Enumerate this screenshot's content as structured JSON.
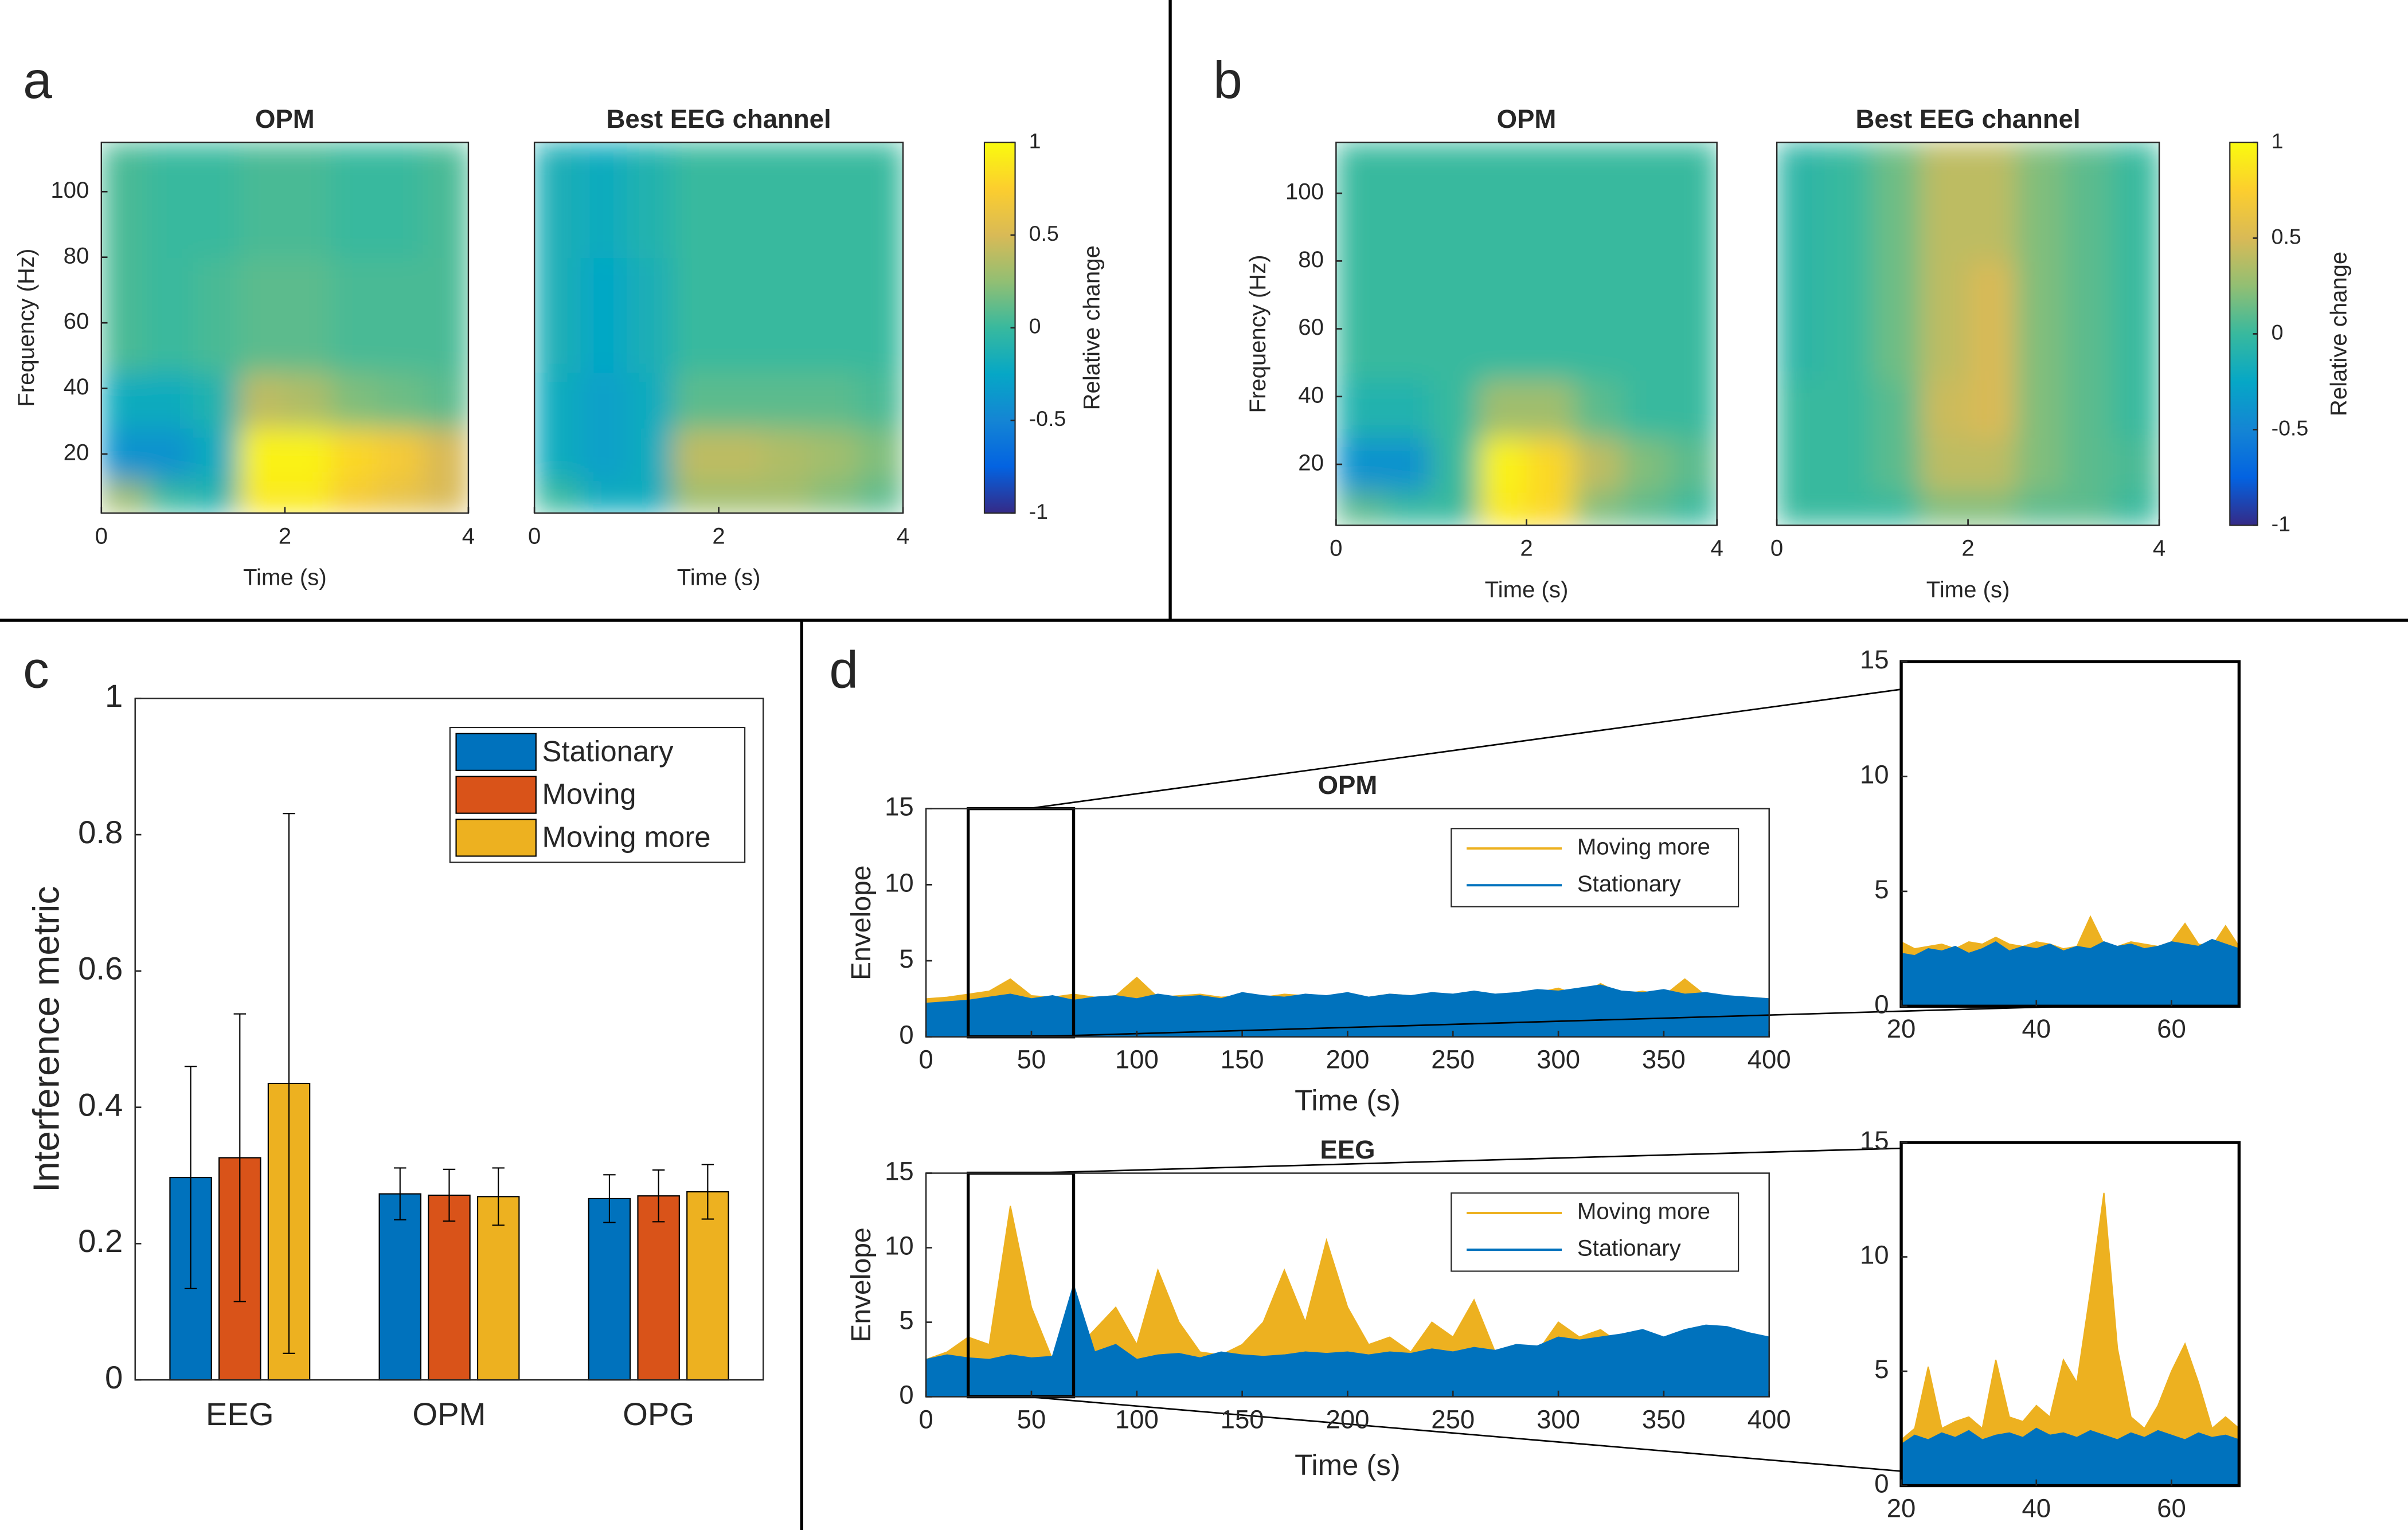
{
  "chart_data": [
    {
      "type": "heatmap",
      "panel_label": "a",
      "title": "OPM",
      "xlabel": "Time (s)",
      "ylabel": "Frequency (Hz)",
      "xlim": [
        0,
        4
      ],
      "ylim": [
        2,
        115
      ],
      "xticks": [
        0,
        2,
        4
      ],
      "yticks": [
        20,
        40,
        60,
        80,
        100
      ],
      "x_bins": [
        0,
        0.5,
        1,
        1.5,
        2,
        2.5,
        3,
        3.5,
        4
      ],
      "y_bins": [
        2,
        12,
        28,
        45,
        80,
        115
      ],
      "z": [
        [
          0.3,
          0.0,
          -0.1,
          0.9,
          0.9,
          0.7,
          0.6,
          0.5
        ],
        [
          -0.4,
          -0.4,
          -0.2,
          0.95,
          0.95,
          0.8,
          0.7,
          0.5
        ],
        [
          -0.2,
          -0.2,
          -0.1,
          0.4,
          0.35,
          0.2,
          0.15,
          0.1
        ],
        [
          0.05,
          0,
          0.05,
          0.1,
          0.1,
          0.05,
          0.05,
          0.05
        ],
        [
          0.05,
          0,
          0,
          0.05,
          0.05,
          0,
          0,
          0.05
        ]
      ],
      "clim": [
        -1,
        1
      ],
      "colormap": "parula"
    },
    {
      "type": "heatmap",
      "title": "Best EEG channel",
      "xlabel": "Time (s)",
      "xlim": [
        0,
        4
      ],
      "ylim": [
        2,
        115
      ],
      "xticks": [
        0,
        2,
        4
      ],
      "x_bins": [
        0,
        0.5,
        1,
        1.5,
        2,
        2.5,
        3,
        3.5,
        4
      ],
      "y_bins": [
        2,
        12,
        28,
        45,
        80,
        115
      ],
      "z": [
        [
          0,
          -0.2,
          -0.2,
          0.3,
          0.3,
          0.3,
          0.2,
          0.1
        ],
        [
          -0.2,
          -0.3,
          -0.2,
          0.4,
          0.4,
          0.35,
          0.3,
          0.2
        ],
        [
          -0.2,
          -0.3,
          -0.2,
          0.1,
          0.1,
          0.1,
          0.1,
          0.05
        ],
        [
          -0.15,
          -0.25,
          -0.15,
          0,
          0,
          0,
          0,
          0
        ],
        [
          -0.15,
          -0.2,
          -0.1,
          0,
          0,
          0,
          0,
          0
        ]
      ],
      "clim": [
        -1,
        1
      ],
      "colormap": "parula",
      "colorbar": {
        "label": "Relative change",
        "ticks": [
          -1,
          -0.5,
          0,
          0.5,
          1
        ]
      }
    },
    {
      "type": "heatmap",
      "panel_label": "b",
      "title": "OPM",
      "xlabel": "Time (s)",
      "ylabel": "Frequency (Hz)",
      "xlim": [
        0,
        4
      ],
      "ylim": [
        2,
        115
      ],
      "xticks": [
        0,
        2,
        4
      ],
      "yticks": [
        20,
        40,
        60,
        80,
        100
      ],
      "x_bins": [
        0,
        0.5,
        1,
        1.5,
        2,
        2.5,
        3,
        3.5,
        4
      ],
      "y_bins": [
        2,
        12,
        28,
        45,
        80,
        115
      ],
      "z": [
        [
          0.1,
          0,
          0,
          0.9,
          0.8,
          0.2,
          0.1,
          0
        ],
        [
          -0.4,
          -0.4,
          0,
          0.95,
          0.8,
          0.4,
          0.2,
          0.1
        ],
        [
          -0.1,
          -0.1,
          0,
          0.3,
          0.3,
          0.1,
          0,
          0
        ],
        [
          0,
          0,
          0,
          0,
          0,
          0,
          0,
          0
        ],
        [
          0,
          0,
          0,
          0,
          0,
          0,
          0,
          0
        ]
      ],
      "clim": [
        -1,
        1
      ],
      "colormap": "parula"
    },
    {
      "type": "heatmap",
      "title": "Best EEG channel",
      "xlabel": "Time (s)",
      "xlim": [
        0,
        4
      ],
      "ylim": [
        2,
        115
      ],
      "xticks": [
        0,
        2,
        4
      ],
      "x_bins": [
        0,
        0.5,
        1,
        1.5,
        2,
        2.5,
        3,
        3.5,
        4
      ],
      "y_bins": [
        2,
        12,
        28,
        45,
        80,
        115
      ],
      "z": [
        [
          0,
          0,
          0,
          0.2,
          0.2,
          0.1,
          0.1,
          0
        ],
        [
          0,
          0,
          0.1,
          0.4,
          0.4,
          0.2,
          0.1,
          0.05
        ],
        [
          0,
          0,
          0.1,
          0.45,
          0.5,
          0.2,
          0.1,
          0
        ],
        [
          -0.05,
          0,
          0.15,
          0.4,
          0.5,
          0.2,
          0.1,
          0
        ],
        [
          -0.05,
          0,
          0.15,
          0.4,
          0.4,
          0.2,
          0.1,
          0
        ]
      ],
      "clim": [
        -1,
        1
      ],
      "colormap": "parula",
      "colorbar": {
        "label": "Relative change",
        "ticks": [
          -1,
          -0.5,
          0,
          0.5,
          1
        ]
      }
    },
    {
      "type": "bar",
      "panel_label": "c",
      "ylabel": "Interference metric",
      "categories": [
        "EEG",
        "OPM",
        "OPG"
      ],
      "series": [
        {
          "name": "Stationary",
          "color": "#0072BD",
          "values": [
            0.297,
            0.273,
            0.266
          ],
          "errors": [
            0.163,
            0.038,
            0.035
          ]
        },
        {
          "name": "Moving",
          "color": "#D95319",
          "values": [
            0.326,
            0.271,
            0.27
          ],
          "errors": [
            0.211,
            0.038,
            0.038
          ]
        },
        {
          "name": "Moving more",
          "color": "#EDB120",
          "values": [
            0.435,
            0.269,
            0.276
          ],
          "errors": [
            0.396,
            0.042,
            0.04
          ]
        }
      ],
      "ylim": [
        0,
        1
      ],
      "yticks": [
        0,
        0.2,
        0.4,
        0.6,
        0.8,
        1
      ],
      "legend": "upper right"
    },
    {
      "type": "area",
      "panel_label": "d",
      "title": "OPM",
      "xlabel": "Time (s)",
      "ylabel": "Envelope",
      "x": [
        0,
        10,
        20,
        30,
        40,
        50,
        60,
        70,
        80,
        90,
        100,
        110,
        120,
        130,
        140,
        150,
        160,
        170,
        180,
        190,
        200,
        210,
        220,
        230,
        240,
        250,
        260,
        270,
        280,
        290,
        300,
        310,
        320,
        330,
        340,
        350,
        360,
        370,
        380,
        390,
        400
      ],
      "series": [
        {
          "name": "Moving more",
          "color": "#EDB120",
          "values": [
            2.5,
            2.6,
            2.8,
            3.0,
            3.8,
            2.7,
            2.6,
            2.8,
            2.6,
            2.7,
            3.9,
            2.6,
            2.7,
            2.8,
            2.6,
            2.7,
            2.6,
            2.8,
            2.7,
            2.6,
            2.7,
            2.6,
            2.8,
            2.7,
            2.6,
            2.7,
            2.8,
            2.6,
            2.7,
            2.9,
            3.2,
            2.7,
            3.5,
            2.8,
            3.0,
            2.7,
            3.8,
            2.7,
            2.6,
            2.6,
            2.5
          ]
        },
        {
          "name": "Stationary",
          "color": "#0072BD",
          "values": [
            2.2,
            2.3,
            2.4,
            2.6,
            2.8,
            2.5,
            2.7,
            2.4,
            2.6,
            2.7,
            2.5,
            2.8,
            2.6,
            2.7,
            2.5,
            2.9,
            2.7,
            2.6,
            2.8,
            2.7,
            2.9,
            2.6,
            2.8,
            2.7,
            2.9,
            2.8,
            3.0,
            2.8,
            2.9,
            3.1,
            3.0,
            3.2,
            3.4,
            3.0,
            2.9,
            3.1,
            2.8,
            2.9,
            2.7,
            2.6,
            2.5
          ]
        }
      ],
      "xlim": [
        0,
        400
      ],
      "ylim": [
        0,
        15
      ],
      "xticks": [
        0,
        50,
        100,
        150,
        200,
        250,
        300,
        350,
        400
      ],
      "yticks": [
        0,
        5,
        10,
        15
      ],
      "legend": "upper right"
    },
    {
      "type": "area",
      "x": [
        20,
        22,
        24,
        26,
        28,
        30,
        32,
        34,
        36,
        38,
        40,
        42,
        44,
        46,
        48,
        50,
        52,
        54,
        56,
        58,
        60,
        62,
        64,
        66,
        68,
        70
      ],
      "series": [
        {
          "color": "#EDB120",
          "values": [
            2.8,
            2.5,
            2.6,
            2.7,
            2.5,
            2.8,
            2.7,
            3.0,
            2.7,
            2.6,
            2.8,
            2.7,
            2.5,
            2.6,
            3.9,
            2.7,
            2.6,
            2.8,
            2.7,
            2.6,
            2.8,
            3.6,
            2.7,
            2.6,
            3.5,
            2.6
          ]
        },
        {
          "color": "#0072BD",
          "values": [
            2.3,
            2.2,
            2.5,
            2.4,
            2.6,
            2.3,
            2.5,
            2.8,
            2.4,
            2.6,
            2.5,
            2.7,
            2.4,
            2.6,
            2.5,
            2.8,
            2.6,
            2.7,
            2.5,
            2.6,
            2.8,
            2.7,
            2.6,
            2.9,
            2.7,
            2.5
          ]
        }
      ],
      "xlim": [
        20,
        70
      ],
      "ylim": [
        0,
        15
      ],
      "xticks": [
        20,
        40,
        60
      ],
      "yticks": [
        0,
        5,
        10,
        15
      ]
    },
    {
      "type": "area",
      "title": "EEG",
      "xlabel": "Time (s)",
      "ylabel": "Envelope",
      "x": [
        0,
        10,
        20,
        30,
        40,
        50,
        60,
        70,
        80,
        90,
        100,
        110,
        120,
        130,
        140,
        150,
        160,
        170,
        180,
        190,
        200,
        210,
        220,
        230,
        240,
        250,
        260,
        270,
        280,
        290,
        300,
        310,
        320,
        330,
        340,
        350,
        360,
        370,
        380,
        390,
        400
      ],
      "series": [
        {
          "name": "Moving more",
          "color": "#EDB120",
          "values": [
            2.5,
            3.0,
            4.0,
            3.5,
            12.8,
            6.0,
            2.5,
            3.0,
            4.5,
            6.0,
            3.5,
            8.5,
            5.0,
            3.0,
            2.8,
            3.5,
            5.0,
            8.5,
            5.0,
            10.5,
            6.0,
            3.5,
            4.0,
            3.0,
            5.0,
            4.0,
            6.5,
            3.0,
            3.5,
            3.0,
            5.0,
            4.0,
            4.5,
            3.5,
            4.5,
            3.0,
            3.5,
            3.0,
            3.2,
            3.0,
            2.8
          ]
        },
        {
          "name": "Stationary",
          "color": "#0072BD",
          "values": [
            2.5,
            2.8,
            2.6,
            2.5,
            2.8,
            2.6,
            2.7,
            7.5,
            3.0,
            3.5,
            2.5,
            2.8,
            2.9,
            2.6,
            3.0,
            2.8,
            2.7,
            2.8,
            3.0,
            2.9,
            3.0,
            2.8,
            3.0,
            2.9,
            3.2,
            3.0,
            3.3,
            3.1,
            3.5,
            3.4,
            4.0,
            3.8,
            4.0,
            4.2,
            4.5,
            4.0,
            4.5,
            4.8,
            4.7,
            4.3,
            4.0
          ]
        }
      ],
      "xlim": [
        0,
        400
      ],
      "ylim": [
        0,
        15
      ],
      "xticks": [
        0,
        50,
        100,
        150,
        200,
        250,
        300,
        350,
        400
      ],
      "yticks": [
        0,
        5,
        10,
        15
      ],
      "legend": "upper right"
    },
    {
      "type": "area",
      "x": [
        20,
        22,
        24,
        26,
        28,
        30,
        32,
        34,
        36,
        38,
        40,
        42,
        44,
        46,
        48,
        50,
        52,
        54,
        56,
        58,
        60,
        62,
        64,
        66,
        68,
        70
      ],
      "series": [
        {
          "color": "#EDB120",
          "values": [
            2.0,
            2.5,
            5.2,
            2.5,
            2.8,
            3.0,
            2.5,
            5.5,
            3.0,
            2.8,
            3.5,
            3.0,
            5.5,
            4.5,
            8.5,
            12.8,
            6.0,
            3.0,
            2.5,
            3.5,
            5.0,
            6.2,
            4.5,
            2.5,
            3.0,
            2.5
          ]
        },
        {
          "color": "#0072BD",
          "values": [
            1.8,
            2.2,
            2.0,
            2.3,
            2.1,
            2.4,
            2.0,
            2.2,
            2.3,
            2.1,
            2.5,
            2.2,
            2.3,
            2.1,
            2.4,
            2.2,
            2.0,
            2.3,
            2.1,
            2.4,
            2.2,
            2.0,
            2.3,
            2.1,
            2.2,
            2.0
          ]
        }
      ],
      "xlim": [
        20,
        70
      ],
      "ylim": [
        0,
        15
      ],
      "xticks": [
        20,
        40,
        60
      ],
      "yticks": [
        0,
        5,
        10,
        15
      ]
    }
  ]
}
